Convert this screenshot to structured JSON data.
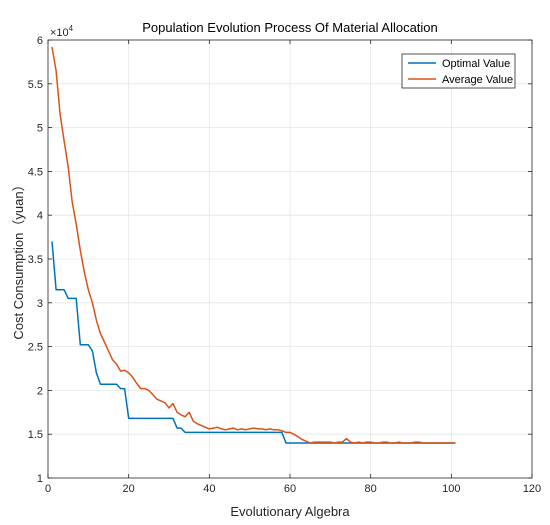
{
  "chart_data": {
    "type": "line",
    "title": "Population Evolution Process Of Material Allocation",
    "xlabel": "Evolutionary Algebra",
    "ylabel": "Cost Consumption（yuan）",
    "y_exponent_label": "×10",
    "y_exponent_power": "4",
    "xlim": [
      0,
      120
    ],
    "ylim": [
      1,
      6
    ],
    "x_ticks": [
      0,
      20,
      40,
      60,
      80,
      100,
      120
    ],
    "y_ticks": [
      1,
      1.5,
      2,
      2.5,
      3,
      3.5,
      4,
      4.5,
      5,
      5.5,
      6
    ],
    "x_tick_labels": [
      "0",
      "20",
      "40",
      "60",
      "80",
      "100",
      "120"
    ],
    "y_tick_labels": [
      "1",
      "1.5",
      "2",
      "2.5",
      "3",
      "3.5",
      "4",
      "4.5",
      "5",
      "5.5",
      "6"
    ],
    "grid": true,
    "legend_position": "top-right",
    "series": [
      {
        "name": "Optimal Value",
        "color": "#0072BD",
        "x": [
          1,
          2,
          3,
          4,
          5,
          6,
          7,
          8,
          9,
          10,
          11,
          12,
          13,
          14,
          15,
          16,
          17,
          18,
          19,
          20,
          21,
          22,
          23,
          24,
          25,
          26,
          27,
          28,
          29,
          30,
          31,
          32,
          33,
          34,
          35,
          36,
          37,
          38,
          39,
          40,
          41,
          42,
          43,
          44,
          45,
          46,
          47,
          48,
          49,
          50,
          51,
          52,
          53,
          54,
          55,
          56,
          57,
          58,
          59,
          60,
          61,
          62,
          63,
          64,
          65,
          66,
          67,
          68,
          69,
          70,
          71,
          72,
          73,
          74,
          75,
          76,
          77,
          78,
          79,
          80,
          81,
          82,
          83,
          84,
          85,
          86,
          87,
          88,
          89,
          90,
          91,
          92,
          93,
          94,
          95,
          96,
          97,
          98,
          99,
          100,
          101
        ],
        "y": [
          3.7,
          3.15,
          3.15,
          3.15,
          3.05,
          3.05,
          3.05,
          2.52,
          2.52,
          2.52,
          2.45,
          2.2,
          2.07,
          2.07,
          2.07,
          2.07,
          2.07,
          2.02,
          2.02,
          1.68,
          1.68,
          1.68,
          1.68,
          1.68,
          1.68,
          1.68,
          1.68,
          1.68,
          1.68,
          1.68,
          1.68,
          1.57,
          1.57,
          1.52,
          1.52,
          1.52,
          1.52,
          1.52,
          1.52,
          1.52,
          1.52,
          1.52,
          1.52,
          1.52,
          1.52,
          1.52,
          1.52,
          1.52,
          1.52,
          1.52,
          1.52,
          1.52,
          1.52,
          1.52,
          1.52,
          1.52,
          1.52,
          1.52,
          1.4,
          1.4,
          1.4,
          1.4,
          1.4,
          1.4,
          1.4,
          1.4,
          1.4,
          1.4,
          1.4,
          1.4,
          1.4,
          1.4,
          1.4,
          1.4,
          1.4,
          1.4,
          1.4,
          1.4,
          1.4,
          1.4,
          1.4,
          1.4,
          1.4,
          1.4,
          1.4,
          1.4,
          1.4,
          1.4,
          1.4,
          1.4,
          1.4,
          1.4,
          1.4,
          1.4,
          1.4,
          1.4,
          1.4,
          1.4,
          1.4,
          1.4,
          1.4
        ]
      },
      {
        "name": "Average Value",
        "color": "#D95319",
        "x": [
          1,
          2,
          3,
          4,
          5,
          6,
          7,
          8,
          9,
          10,
          11,
          12,
          13,
          14,
          15,
          16,
          17,
          18,
          19,
          20,
          21,
          22,
          23,
          24,
          25,
          26,
          27,
          28,
          29,
          30,
          31,
          32,
          33,
          34,
          35,
          36,
          37,
          38,
          39,
          40,
          41,
          42,
          43,
          44,
          45,
          46,
          47,
          48,
          49,
          50,
          51,
          52,
          53,
          54,
          55,
          56,
          57,
          58,
          59,
          60,
          61,
          62,
          63,
          64,
          65,
          66,
          67,
          68,
          69,
          70,
          71,
          72,
          73,
          74,
          75,
          76,
          77,
          78,
          79,
          80,
          81,
          82,
          83,
          84,
          85,
          86,
          87,
          88,
          89,
          90,
          91,
          92,
          93,
          94,
          95,
          96,
          97,
          98,
          99,
          100,
          101
        ],
        "y": [
          5.92,
          5.65,
          5.15,
          4.85,
          4.55,
          4.15,
          3.9,
          3.6,
          3.35,
          3.15,
          3.0,
          2.8,
          2.65,
          2.55,
          2.45,
          2.35,
          2.3,
          2.22,
          2.23,
          2.2,
          2.15,
          2.08,
          2.02,
          2.02,
          2.0,
          1.95,
          1.9,
          1.88,
          1.86,
          1.8,
          1.85,
          1.75,
          1.72,
          1.7,
          1.75,
          1.65,
          1.62,
          1.6,
          1.58,
          1.56,
          1.57,
          1.58,
          1.56,
          1.55,
          1.56,
          1.57,
          1.55,
          1.56,
          1.55,
          1.56,
          1.57,
          1.56,
          1.56,
          1.55,
          1.56,
          1.55,
          1.55,
          1.54,
          1.52,
          1.52,
          1.5,
          1.47,
          1.44,
          1.42,
          1.4,
          1.41,
          1.41,
          1.41,
          1.41,
          1.41,
          1.4,
          1.41,
          1.41,
          1.45,
          1.41,
          1.4,
          1.41,
          1.4,
          1.41,
          1.41,
          1.4,
          1.4,
          1.41,
          1.41,
          1.4,
          1.4,
          1.41,
          1.4,
          1.4,
          1.4,
          1.41,
          1.41,
          1.4,
          1.4,
          1.4,
          1.4,
          1.4,
          1.4,
          1.4,
          1.4,
          1.4
        ]
      }
    ]
  }
}
